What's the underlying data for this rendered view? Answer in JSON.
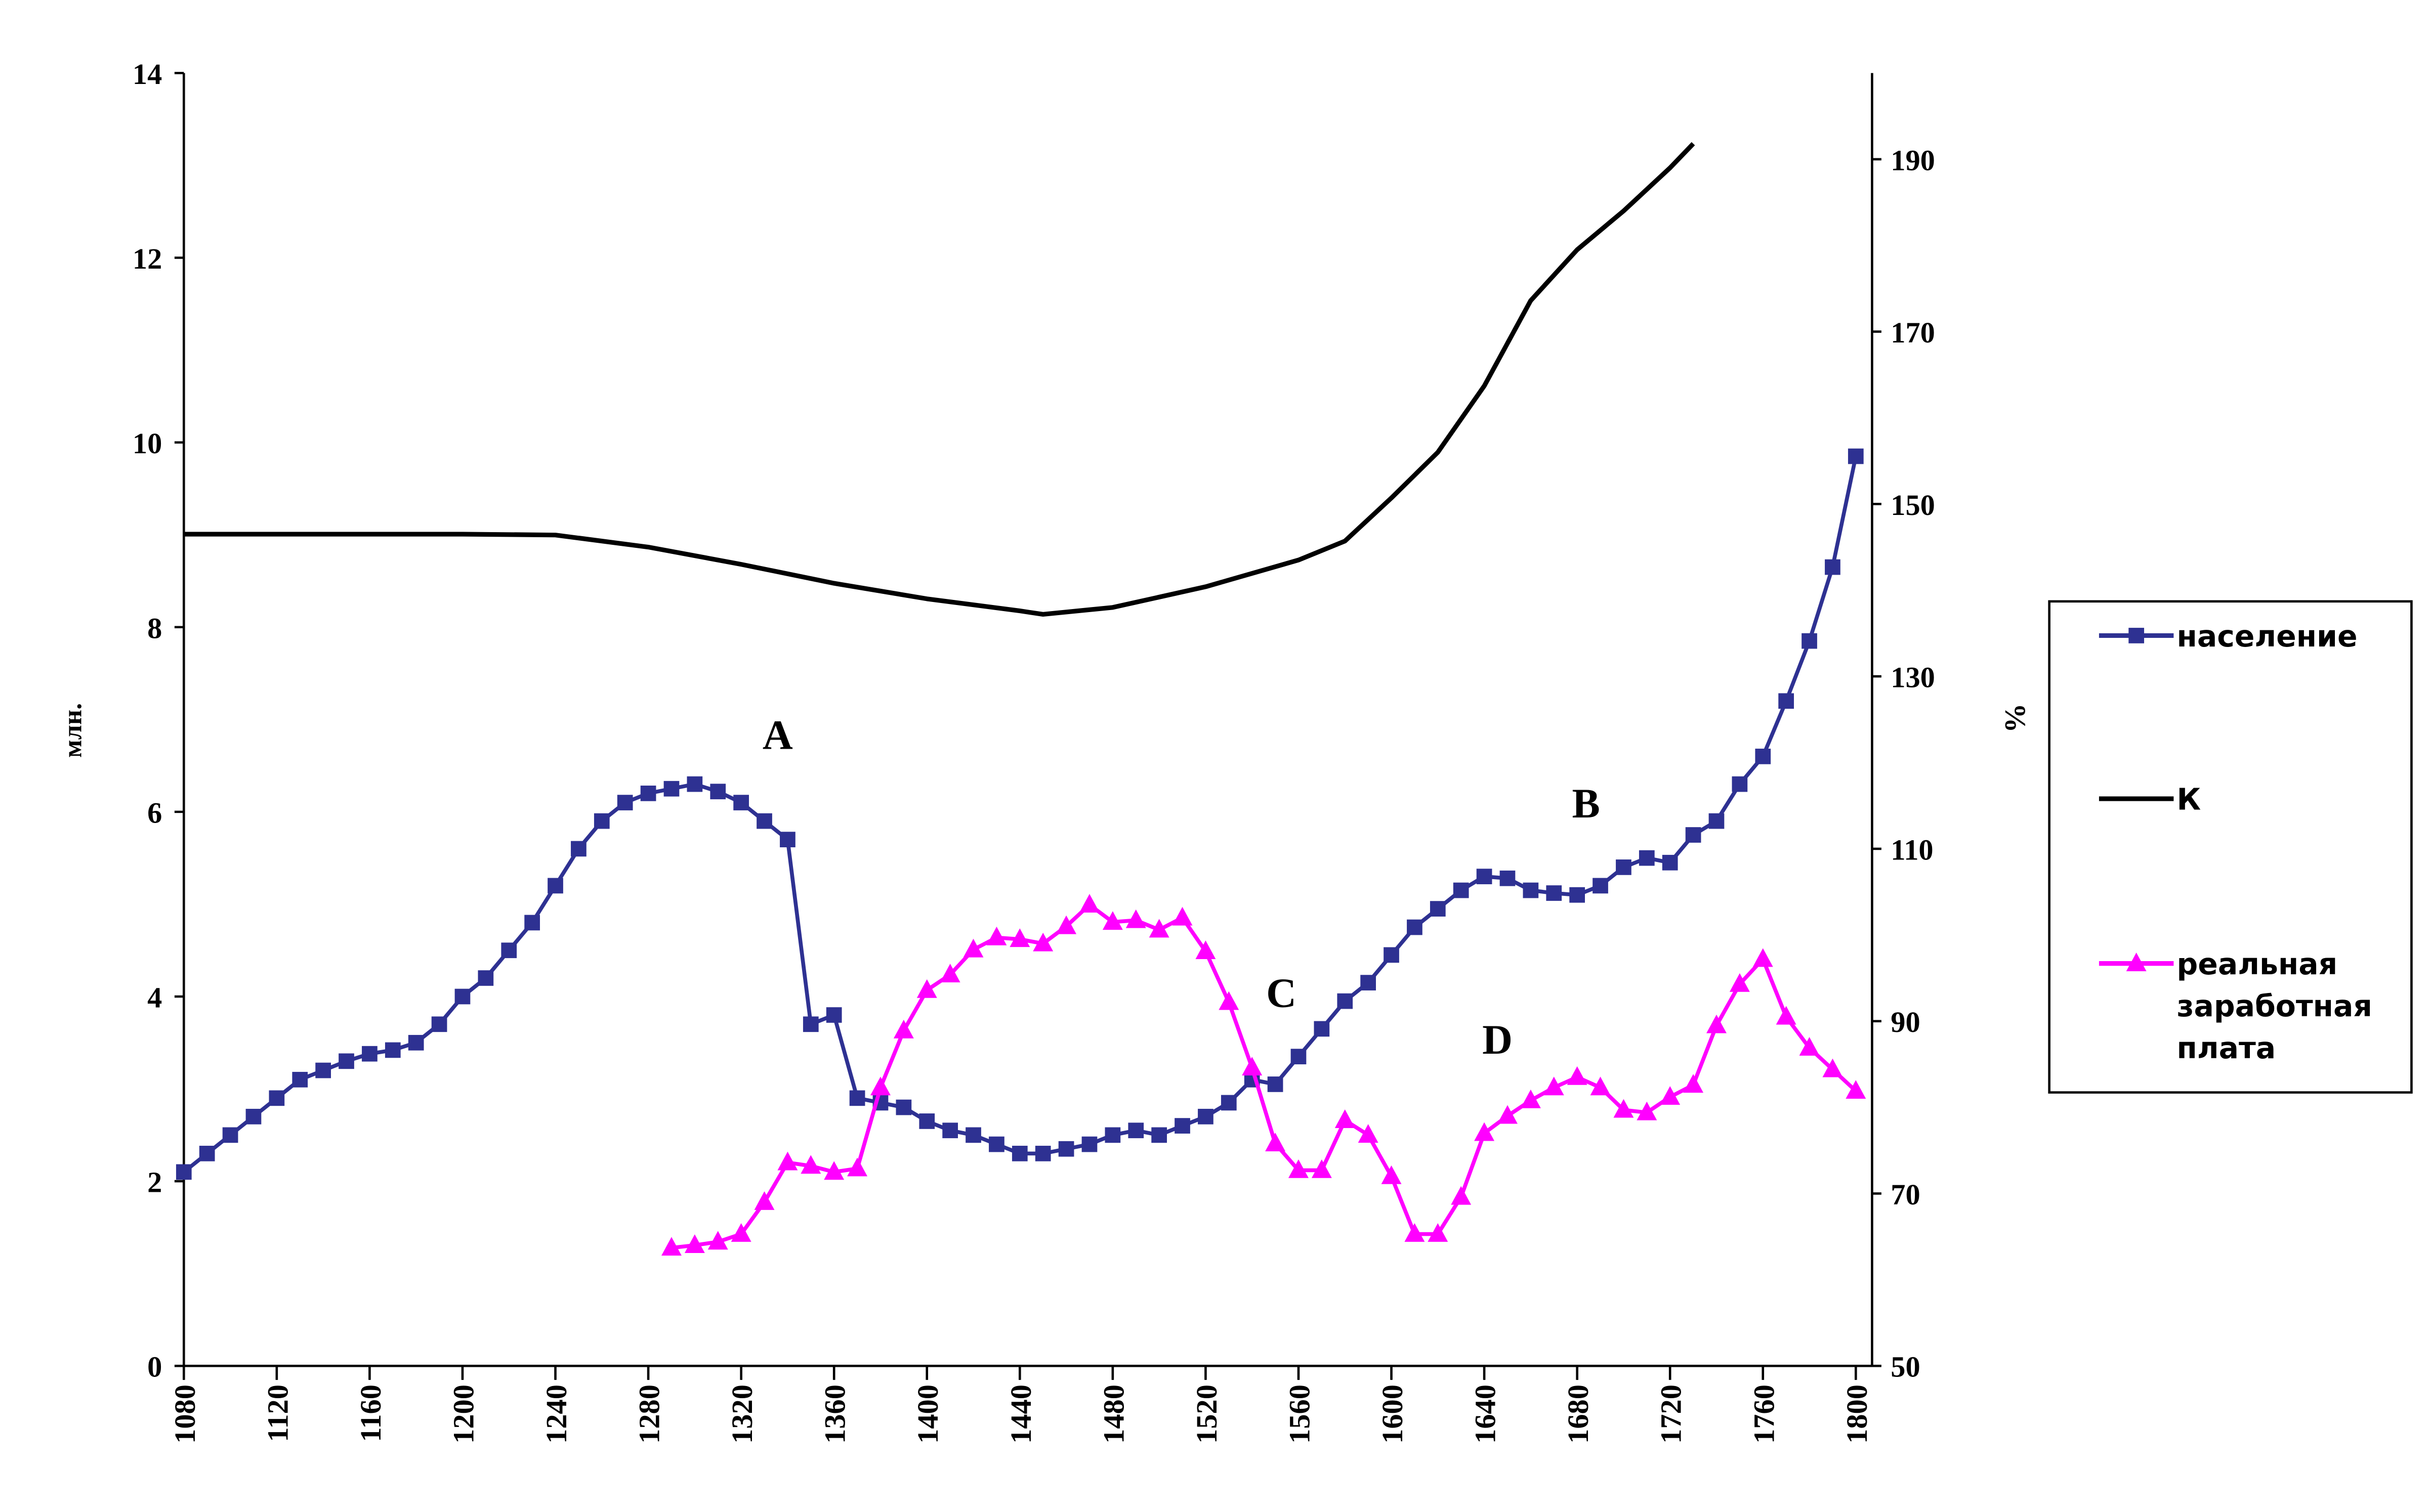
{
  "chart_data": {
    "type": "line",
    "y_label": "млн.",
    "y2_label": "%",
    "xlim": [
      1080,
      1807
    ],
    "xticks": [
      1080,
      1120,
      1160,
      1200,
      1240,
      1280,
      1320,
      1360,
      1400,
      1440,
      1480,
      1520,
      1560,
      1600,
      1640,
      1680,
      1720,
      1760,
      1800
    ],
    "ylim": [
      0,
      14
    ],
    "yticks": [
      0,
      2,
      4,
      6,
      8,
      10,
      12,
      14
    ],
    "y2lim": [
      50,
      200
    ],
    "y2ticks": [
      50,
      70,
      90,
      110,
      130,
      150,
      170,
      190
    ],
    "annotations": [
      "A",
      "B",
      "C",
      "D"
    ],
    "series": [
      {
        "name": "население",
        "color": "#2e3192",
        "marker": "square",
        "x": [
          1080,
          1090,
          1100,
          1110,
          1120,
          1130,
          1140,
          1150,
          1160,
          1170,
          1180,
          1190,
          1200,
          1210,
          1220,
          1230,
          1240,
          1250,
          1260,
          1270,
          1280,
          1290,
          1300,
          1310,
          1320,
          1330,
          1340,
          1350,
          1360,
          1370,
          1380,
          1390,
          1400,
          1410,
          1420,
          1430,
          1440,
          1450,
          1460,
          1470,
          1480,
          1490,
          1500,
          1510,
          1520,
          1530,
          1540,
          1550,
          1560,
          1570,
          1580,
          1590,
          1600,
          1610,
          1620,
          1630,
          1640,
          1650,
          1660,
          1670,
          1680,
          1690,
          1700,
          1710,
          1720,
          1730,
          1740,
          1750,
          1760,
          1770,
          1780,
          1790,
          1800
        ],
        "values": [
          2.1,
          2.3,
          2.5,
          2.7,
          2.9,
          3.1,
          3.2,
          3.3,
          3.38,
          3.42,
          3.5,
          3.7,
          4.0,
          4.2,
          4.5,
          4.8,
          5.2,
          5.6,
          5.9,
          6.1,
          6.2,
          6.25,
          6.3,
          6.22,
          6.1,
          5.9,
          5.7,
          3.7,
          3.8,
          2.9,
          2.85,
          2.8,
          2.65,
          2.55,
          2.5,
          2.4,
          2.3,
          2.3,
          2.35,
          2.4,
          2.5,
          2.55,
          2.5,
          2.6,
          2.7,
          2.85,
          3.1,
          3.05,
          3.35,
          3.65,
          3.95,
          4.15,
          4.45,
          4.75,
          4.95,
          5.15,
          5.3,
          5.28,
          5.15,
          5.12,
          5.1,
          5.2,
          5.4,
          5.5,
          5.45,
          5.75,
          5.9,
          6.3,
          6.6,
          7.2,
          7.85,
          8.65,
          9.85
        ]
      },
      {
        "name": "К",
        "color": "#000000",
        "marker": "none",
        "axis": "y2",
        "x": [
          1080,
          1120,
          1160,
          1200,
          1240,
          1280,
          1320,
          1360,
          1400,
          1440,
          1450,
          1480,
          1520,
          1560,
          1580,
          1600,
          1620,
          1640,
          1660,
          1680,
          1700,
          1720,
          1730
        ],
        "values": [
          146.5,
          146.5,
          146.5,
          146.5,
          146.4,
          145,
          143,
          140.8,
          139,
          137.6,
          137.2,
          138,
          140.4,
          143.5,
          145.7,
          150.7,
          156,
          163.7,
          173.6,
          179.5,
          184,
          189,
          191.8
        ]
      },
      {
        "name": "реальная заработная плата",
        "color": "#ff00ff",
        "marker": "triangle",
        "axis": "y2",
        "x": [
          1290,
          1300,
          1310,
          1320,
          1330,
          1340,
          1350,
          1360,
          1370,
          1380,
          1390,
          1400,
          1410,
          1420,
          1430,
          1440,
          1450,
          1460,
          1470,
          1480,
          1490,
          1500,
          1510,
          1520,
          1530,
          1540,
          1550,
          1560,
          1570,
          1580,
          1590,
          1600,
          1610,
          1620,
          1630,
          1640,
          1650,
          1660,
          1670,
          1680,
          1690,
          1700,
          1710,
          1720,
          1730,
          1740,
          1750,
          1760,
          1770,
          1780,
          1790,
          1800
        ],
        "values": [
          63.7,
          64,
          64.4,
          65.3,
          69,
          73.6,
          73.2,
          72.5,
          72.9,
          82.3,
          88.9,
          93.6,
          95.4,
          98.3,
          99.7,
          99.5,
          99,
          101,
          103.5,
          101.5,
          101.7,
          100.6,
          102,
          98.1,
          92.2,
          84.6,
          75.8,
          72.7,
          72.7,
          78.5,
          76.8,
          72,
          65.3,
          65.3,
          69.6,
          77,
          79,
          80.8,
          82.3,
          83.5,
          82.3,
          79.7,
          79.4,
          81.2,
          82.6,
          89.5,
          94.3,
          97.2,
          90.5,
          86.9,
          84.4,
          81.9
        ]
      }
    ]
  }
}
